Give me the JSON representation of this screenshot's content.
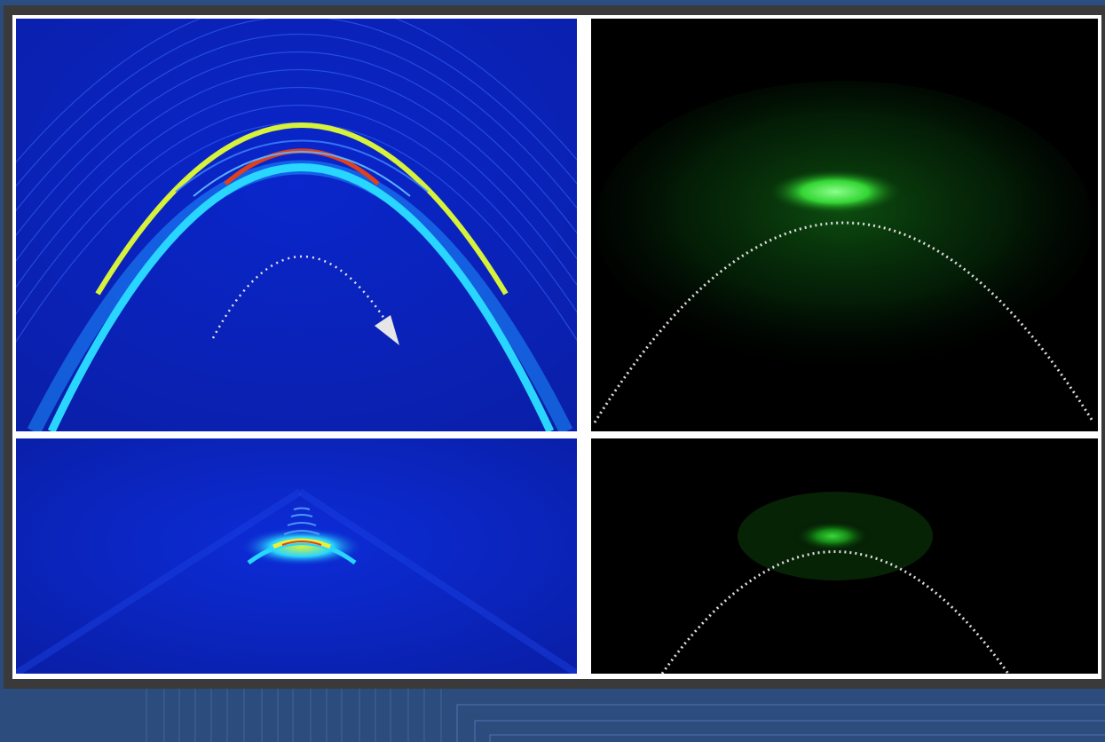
{
  "figure": {
    "panels": [
      {
        "id": "simulation-top",
        "description_icon": "parabolic-beam-simulation"
      },
      {
        "id": "experiment-top",
        "description_icon": "parabolic-beam-fluorescence"
      },
      {
        "id": "simulation-bottom",
        "description_icon": "focused-beam-simulation"
      },
      {
        "id": "experiment-bottom",
        "description_icon": "focused-beam-fluorescence"
      }
    ],
    "colors": {
      "simulation_background": "#0a24c8",
      "fluorescence": "#3cff3c",
      "frame": "#3a3a3a",
      "border": "#ffffff",
      "page_background": "#2a4a7a"
    }
  }
}
